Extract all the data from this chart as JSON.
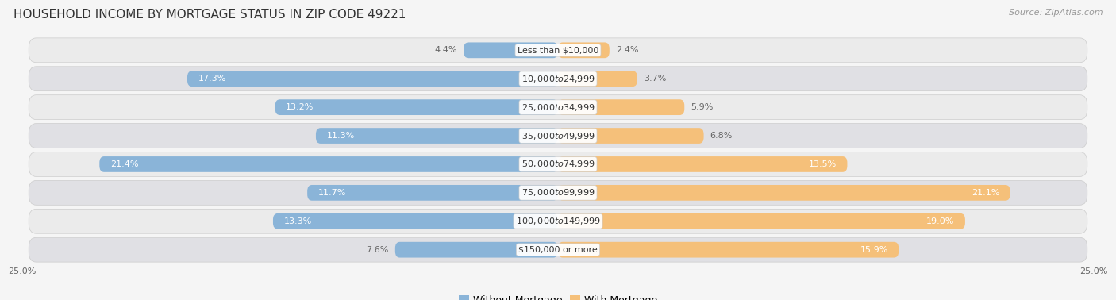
{
  "title": "HOUSEHOLD INCOME BY MORTGAGE STATUS IN ZIP CODE 49221",
  "source": "Source: ZipAtlas.com",
  "categories": [
    "Less than $10,000",
    "$10,000 to $24,999",
    "$25,000 to $34,999",
    "$35,000 to $49,999",
    "$50,000 to $74,999",
    "$75,000 to $99,999",
    "$100,000 to $149,999",
    "$150,000 or more"
  ],
  "without_mortgage": [
    4.4,
    17.3,
    13.2,
    11.3,
    21.4,
    11.7,
    13.3,
    7.6
  ],
  "with_mortgage": [
    2.4,
    3.7,
    5.9,
    6.8,
    13.5,
    21.1,
    19.0,
    15.9
  ],
  "color_without": "#8ab4d8",
  "color_with": "#f5c07a",
  "row_bg": "#efefef",
  "row_bg_alt": "#e4e4e8",
  "bg_color": "#f5f5f5",
  "axis_limit": 25.0,
  "title_fontsize": 11,
  "label_fontsize": 8,
  "cat_fontsize": 8,
  "legend_fontsize": 9,
  "source_fontsize": 8
}
